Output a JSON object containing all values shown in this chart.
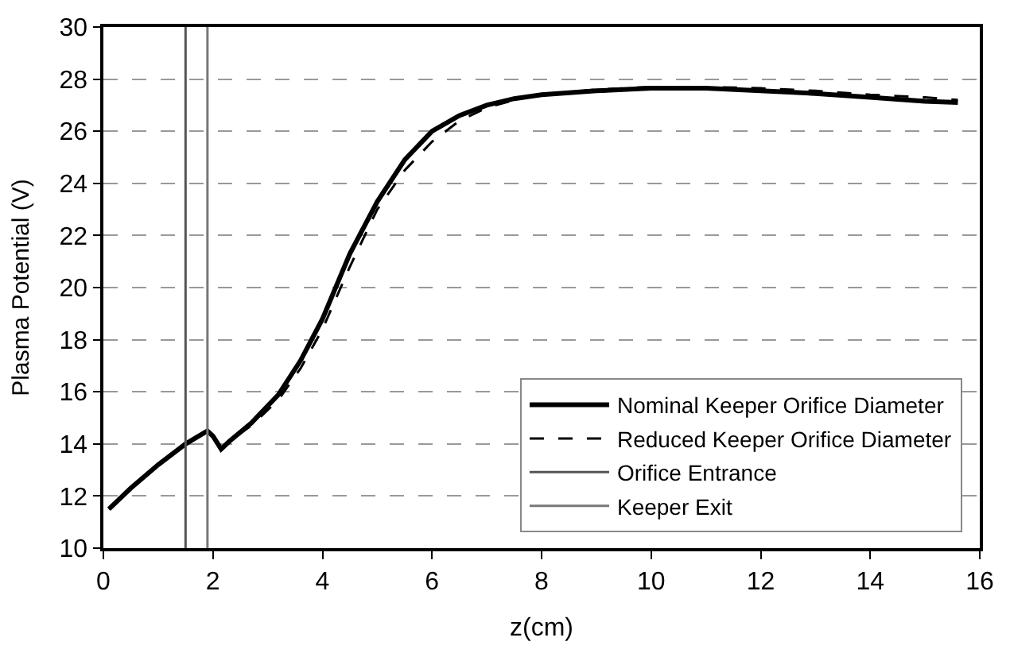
{
  "chart_data": {
    "type": "line",
    "xlabel": "z(cm)",
    "ylabel": "Plasma Potential (V)",
    "xlim": [
      0,
      16
    ],
    "xticks": [
      0,
      2,
      4,
      6,
      8,
      10,
      12,
      14,
      16
    ],
    "ylim": [
      10,
      30
    ],
    "yticks": [
      10,
      12,
      14,
      16,
      18,
      20,
      22,
      24,
      26,
      28,
      30
    ],
    "grid": "y",
    "legend": "bottom right",
    "marker": "none",
    "series": [
      {
        "name": "Nominal Keeper Orifice Diameter",
        "color": "#000000",
        "line_style": "solid",
        "x": [
          0.1,
          0.5,
          1,
          1.5,
          1.9,
          2.0,
          2.15,
          2.3,
          2.7,
          3.2,
          3.6,
          4,
          4.5,
          5,
          5.5,
          6,
          6.5,
          7,
          7.5,
          8,
          9,
          10,
          11,
          12,
          13,
          14,
          15,
          15.6
        ],
        "values": [
          11.5,
          12.3,
          13.2,
          14.0,
          14.5,
          14.3,
          13.8,
          14.1,
          14.8,
          15.9,
          17.2,
          18.8,
          21.3,
          23.3,
          24.9,
          26.0,
          26.6,
          27.0,
          27.25,
          27.4,
          27.55,
          27.65,
          27.65,
          27.55,
          27.45,
          27.3,
          27.15,
          27.1
        ]
      },
      {
        "name": "Reduced Keeper Orifice Diameter",
        "color": "#000000",
        "line_style": "dashed",
        "x": [
          0.1,
          0.5,
          1,
          1.5,
          1.9,
          2.0,
          2.15,
          2.3,
          2.7,
          3.2,
          3.6,
          4,
          4.5,
          5,
          5.5,
          6,
          6.5,
          7,
          7.5,
          8,
          9,
          10,
          11,
          12,
          13,
          14,
          15,
          15.6
        ],
        "values": [
          11.5,
          12.3,
          13.2,
          14.0,
          14.5,
          14.3,
          13.8,
          14.1,
          14.7,
          15.7,
          16.9,
          18.4,
          20.8,
          23.0,
          24.5,
          25.6,
          26.4,
          26.9,
          27.2,
          27.4,
          27.6,
          27.7,
          27.7,
          27.65,
          27.55,
          27.4,
          27.3,
          27.2
        ]
      },
      {
        "name": "Orifice Entrance",
        "color": "#555555",
        "line_style": "solid",
        "x": [
          1.5,
          1.5
        ],
        "values": [
          10,
          30
        ]
      },
      {
        "name": "Keeper Exit",
        "color": "#777777",
        "line_style": "solid",
        "x": [
          1.9,
          1.9
        ],
        "values": [
          10,
          30
        ]
      }
    ]
  }
}
